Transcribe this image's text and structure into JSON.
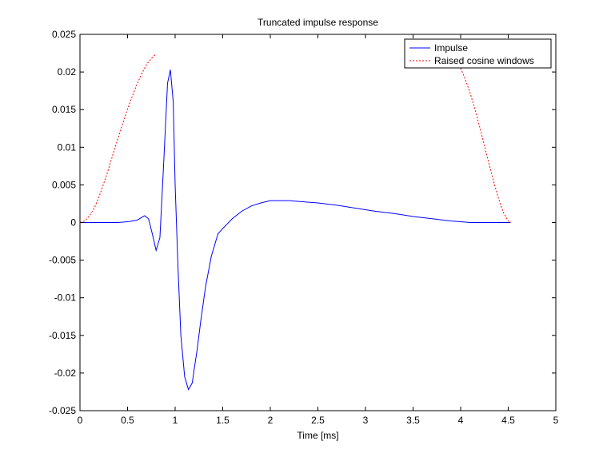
{
  "chart_data": {
    "type": "line",
    "title": "Truncated impulse response",
    "xlabel": "Time [ms]",
    "ylabel": "",
    "xlim": [
      0,
      5
    ],
    "ylim": [
      -0.025,
      0.025
    ],
    "x_ticks": [
      0,
      0.5,
      1,
      1.5,
      2,
      2.5,
      3,
      3.5,
      4,
      4.5,
      5
    ],
    "x_tick_labels": [
      "0",
      "0.5",
      "1",
      "1.5",
      "2",
      "2.5",
      "3",
      "3.5",
      "4",
      "4.5",
      "5"
    ],
    "y_ticks": [
      -0.025,
      -0.02,
      -0.015,
      -0.01,
      -0.005,
      0,
      0.005,
      0.01,
      0.015,
      0.02,
      0.025
    ],
    "y_tick_labels": [
      "-0.025",
      "-0.02",
      "-0.015",
      "-0.01",
      "-0.005",
      "0",
      "0.005",
      "0.01",
      "0.015",
      "0.02",
      "0.025"
    ],
    "grid": false,
    "legend_position": "top-right",
    "series": [
      {
        "name": "Impulse",
        "color": "#0000ff",
        "style": "solid",
        "x": [
          0,
          0.1,
          0.2,
          0.3,
          0.4,
          0.5,
          0.55,
          0.6,
          0.65,
          0.68,
          0.72,
          0.76,
          0.8,
          0.84,
          0.88,
          0.92,
          0.95,
          0.98,
          1.0,
          1.03,
          1.06,
          1.1,
          1.14,
          1.18,
          1.2,
          1.23,
          1.27,
          1.32,
          1.38,
          1.45,
          1.5,
          1.6,
          1.7,
          1.8,
          1.9,
          2.0,
          2.1,
          2.2,
          2.3,
          2.5,
          2.7,
          2.9,
          3.1,
          3.3,
          3.5,
          3.7,
          3.9,
          4.0,
          4.1,
          4.2,
          4.3,
          4.4,
          4.52
        ],
        "y": [
          0,
          0,
          0,
          0,
          0,
          0.0001,
          0.0002,
          0.0003,
          0.0007,
          0.0009,
          0.0005,
          -0.0015,
          -0.0037,
          -0.002,
          0.008,
          0.0185,
          0.0203,
          0.016,
          0.005,
          -0.006,
          -0.015,
          -0.0205,
          -0.0222,
          -0.0213,
          -0.0195,
          -0.017,
          -0.013,
          -0.0085,
          -0.0045,
          -0.0015,
          -0.0008,
          0.0005,
          0.0015,
          0.0022,
          0.0026,
          0.0029,
          0.0029,
          0.0029,
          0.0028,
          0.0026,
          0.0023,
          0.0019,
          0.0015,
          0.0012,
          0.0008,
          0.0005,
          0.0002,
          0.0001,
          0,
          0,
          0,
          0,
          0
        ]
      },
      {
        "name": "Raised cosine windows",
        "color": "#ff0000",
        "style": "dashed",
        "x": [
          0,
          0.05,
          0.1,
          0.15,
          0.2,
          0.25,
          0.3,
          0.35,
          0.4,
          0.45,
          0.5,
          0.55,
          0.6,
          0.65,
          0.7,
          0.75,
          0.8
        ],
        "y": [
          0,
          0.0002,
          0.0009,
          0.0019,
          0.0034,
          0.0052,
          0.0071,
          0.0092,
          0.0112,
          0.0132,
          0.0151,
          0.0168,
          0.0184,
          0.0198,
          0.021,
          0.0218,
          0.0224
        ],
        "x2": [
          4.0,
          4.05,
          4.1,
          4.15,
          4.2,
          4.25,
          4.3,
          4.35,
          4.4,
          4.45,
          4.5,
          4.53
        ],
        "y2": [
          0.0205,
          0.019,
          0.0172,
          0.0151,
          0.0127,
          0.0102,
          0.0077,
          0.0053,
          0.0031,
          0.0013,
          0.0002,
          0
        ]
      }
    ]
  }
}
